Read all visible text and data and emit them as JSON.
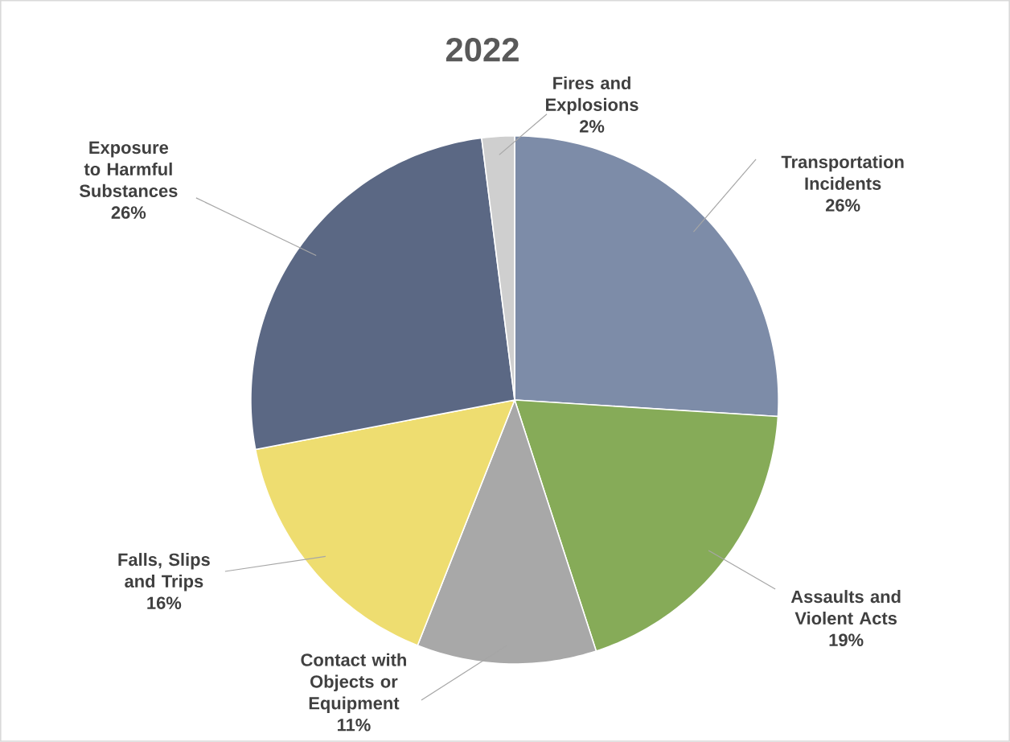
{
  "chart_data": {
    "type": "pie",
    "title": "2022",
    "categories": [
      "Transportation Incidents",
      "Assaults and Violent Acts",
      "Contact with Objects or Equipment",
      "Falls, Slips and Trips",
      "Exposure to Harmful Substances",
      "Fires and Explosions"
    ],
    "values": [
      26,
      19,
      11,
      16,
      26,
      2
    ],
    "value_labels": [
      "26%",
      "19%",
      "11%",
      "16%",
      "26%",
      "2%"
    ],
    "colors": [
      "#7d8ca8",
      "#86ab58",
      "#a8a8a8",
      "#eedd70",
      "#5b6884",
      "#cfcfcf"
    ]
  }
}
